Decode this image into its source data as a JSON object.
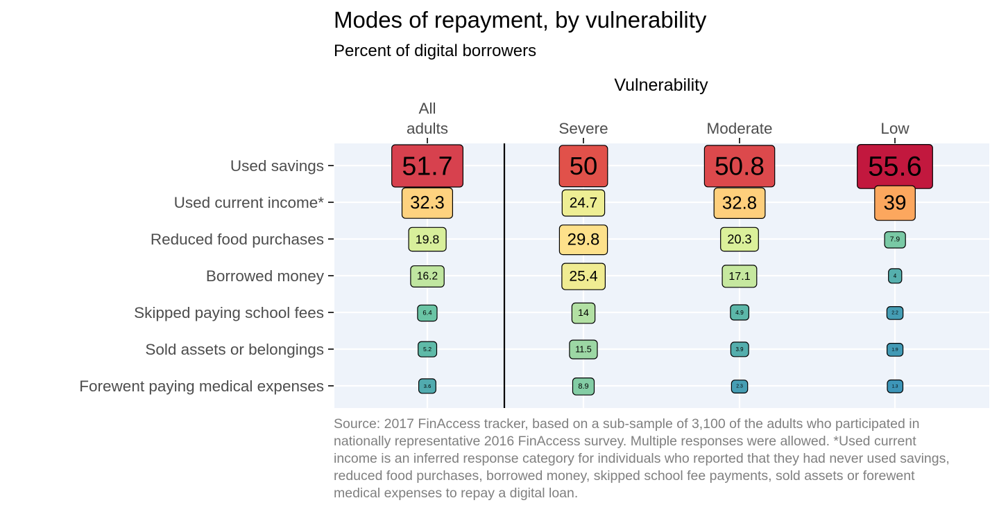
{
  "title": "Modes of repayment, by vulnerability",
  "subtitle": "Percent of digital borrowers",
  "caption": "Source: 2017 FinAccess tracker, based on a sub-sample of 3,100 of the adults who participated in nationally representative 2016 FinAccess survey. Multiple responses were allowed. *Used current income is an inferred response category for individuals who reported that they had never used savings, reduced food purchases, borrowed money, skipped school fee payments, sold assets or forewent medical expenses to repay a digital loan.",
  "chart_data": {
    "type": "heatmap",
    "title": "Modes of repayment, by vulnerability",
    "subtitle": "Percent of digital borrowers",
    "x_group_label": "Vulnerability",
    "columns": [
      {
        "label_lines": [
          "All",
          "adults"
        ],
        "key": "all"
      },
      {
        "label_lines": [
          "Severe"
        ],
        "key": "severe"
      },
      {
        "label_lines": [
          "Moderate"
        ],
        "key": "moderate"
      },
      {
        "label_lines": [
          "Low"
        ],
        "key": "low"
      }
    ],
    "rows": [
      "Used savings",
      "Used current income*",
      "Reduced food purchases",
      "Borrowed money",
      "Skipped paying school fees",
      "Sold assets or belongings",
      "Forewent paying medical expenses"
    ],
    "values": [
      [
        51.7,
        50,
        50.8,
        55.6
      ],
      [
        32.3,
        24.7,
        32.8,
        39
      ],
      [
        19.8,
        29.8,
        20.3,
        7.9
      ],
      [
        16.2,
        25.4,
        17.1,
        4
      ],
      [
        6.4,
        14,
        4.9,
        2.2
      ],
      [
        5.2,
        11.5,
        3.9,
        1.9
      ],
      [
        3.6,
        8.9,
        2.3,
        1.3
      ]
    ],
    "value_labels": [
      [
        "51.7",
        "50",
        "50.8",
        "55.6"
      ],
      [
        "32.3",
        "24.7",
        "32.8",
        "39"
      ],
      [
        "19.8",
        "29.8",
        "20.3",
        "7.9"
      ],
      [
        "16.2",
        "25.4",
        "17.1",
        "4"
      ],
      [
        "6.4",
        "14",
        "4.9",
        "2.2"
      ],
      [
        "5.2",
        "11.5",
        "3.9",
        "1.9"
      ],
      [
        "3.6",
        "8.9",
        "2.3",
        "1.3"
      ]
    ],
    "encoding": "label size and fill colour scale with value (Spectral palette, blue = low, red = high)",
    "separator_after_column": "all",
    "panel_background": "#eef3fa",
    "grid": true,
    "legend": "none",
    "palette": [
      "#3288bd",
      "#66c2a5",
      "#abdda4",
      "#e6f598",
      "#fee08b",
      "#fdae61",
      "#f46d43",
      "#d53e4f",
      "#c0143c"
    ]
  }
}
